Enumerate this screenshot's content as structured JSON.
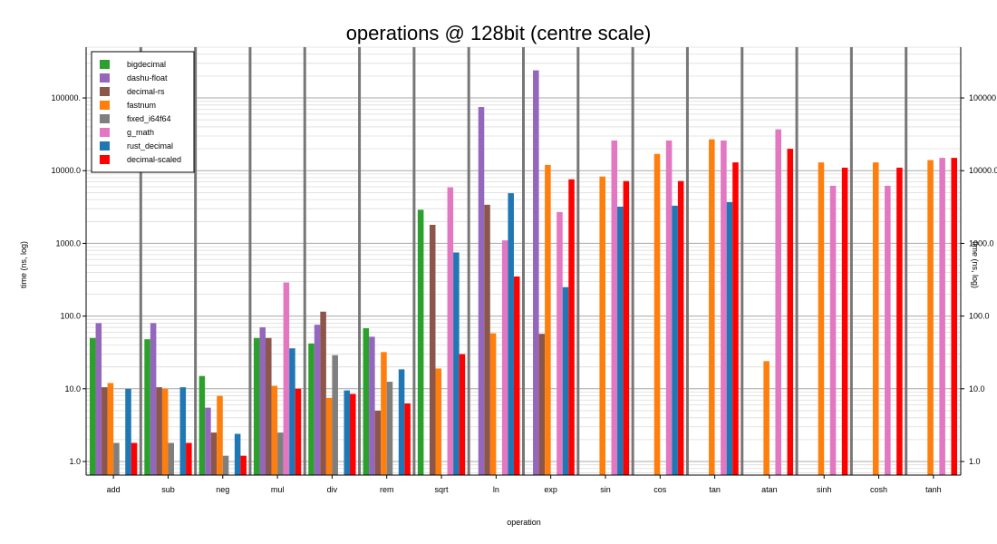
{
  "chart_data": {
    "type": "bar",
    "title": "operations @ 128bit (centre scale)",
    "xlabel": "operation",
    "ylabel": "time (ns, log)",
    "yscale": "log",
    "ylim": [
      0.65,
      500000
    ],
    "yticks": [
      1,
      10,
      100,
      1000,
      10000,
      100000
    ],
    "ytick_labels": [
      "1.0",
      "10.0",
      "100.0",
      "1000.0",
      "10000.0",
      "100000."
    ],
    "y2tick_labels": [
      "1.0",
      "10.0",
      "100.0",
      "1000.0",
      "10000.0",
      "100000"
    ],
    "grid": true,
    "legend_position": "top-left",
    "categories": [
      "add",
      "sub",
      "neg",
      "mul",
      "div",
      "rem",
      "sqrt",
      "ln",
      "exp",
      "sin",
      "cos",
      "tan",
      "atan",
      "sinh",
      "cosh",
      "tanh"
    ],
    "series": [
      {
        "name": "bigdecimal",
        "color": "#2ca02c",
        "values": [
          50,
          48,
          15,
          50,
          42,
          68,
          2900,
          null,
          null,
          null,
          null,
          null,
          null,
          null,
          null,
          null
        ]
      },
      {
        "name": "dashu-float",
        "color": "#9467bd",
        "values": [
          80,
          80,
          5.5,
          70,
          76,
          52,
          null,
          75000,
          240000,
          null,
          null,
          null,
          null,
          null,
          null,
          null
        ]
      },
      {
        "name": "decimal-rs",
        "color": "#8c564b",
        "values": [
          10.5,
          10.5,
          2.5,
          50,
          115,
          5,
          1800,
          3400,
          57,
          null,
          null,
          null,
          null,
          null,
          null,
          null
        ]
      },
      {
        "name": "fastnum",
        "color": "#ff7f0e",
        "values": [
          12,
          10,
          8,
          11,
          7.5,
          32,
          19,
          58,
          12000,
          8300,
          17000,
          27000,
          24,
          13000,
          13000,
          14000
        ]
      },
      {
        "name": "fixed_i64f64",
        "color": "#7f7f7f",
        "values": [
          1.8,
          1.8,
          1.2,
          2.5,
          29,
          12.5,
          null,
          null,
          null,
          null,
          null,
          null,
          null,
          null,
          null,
          null
        ]
      },
      {
        "name": "g_math",
        "color": "#e377c2",
        "values": [
          null,
          null,
          null,
          290,
          null,
          null,
          5900,
          1100,
          2700,
          26000,
          26000,
          26000,
          37000,
          6200,
          6200,
          15000
        ]
      },
      {
        "name": "rust_decimal",
        "color": "#1f77b4",
        "values": [
          10,
          10.5,
          2.4,
          36,
          9.5,
          18.5,
          750,
          4900,
          250,
          3200,
          3300,
          3700,
          null,
          null,
          null,
          null
        ]
      },
      {
        "name": "decimal-scaled",
        "color": "#ff0000",
        "values": [
          1.8,
          1.8,
          1.2,
          10,
          8.5,
          6.3,
          30,
          350,
          7600,
          7200,
          7200,
          13000,
          20000,
          11000,
          11000,
          15000
        ]
      }
    ]
  }
}
